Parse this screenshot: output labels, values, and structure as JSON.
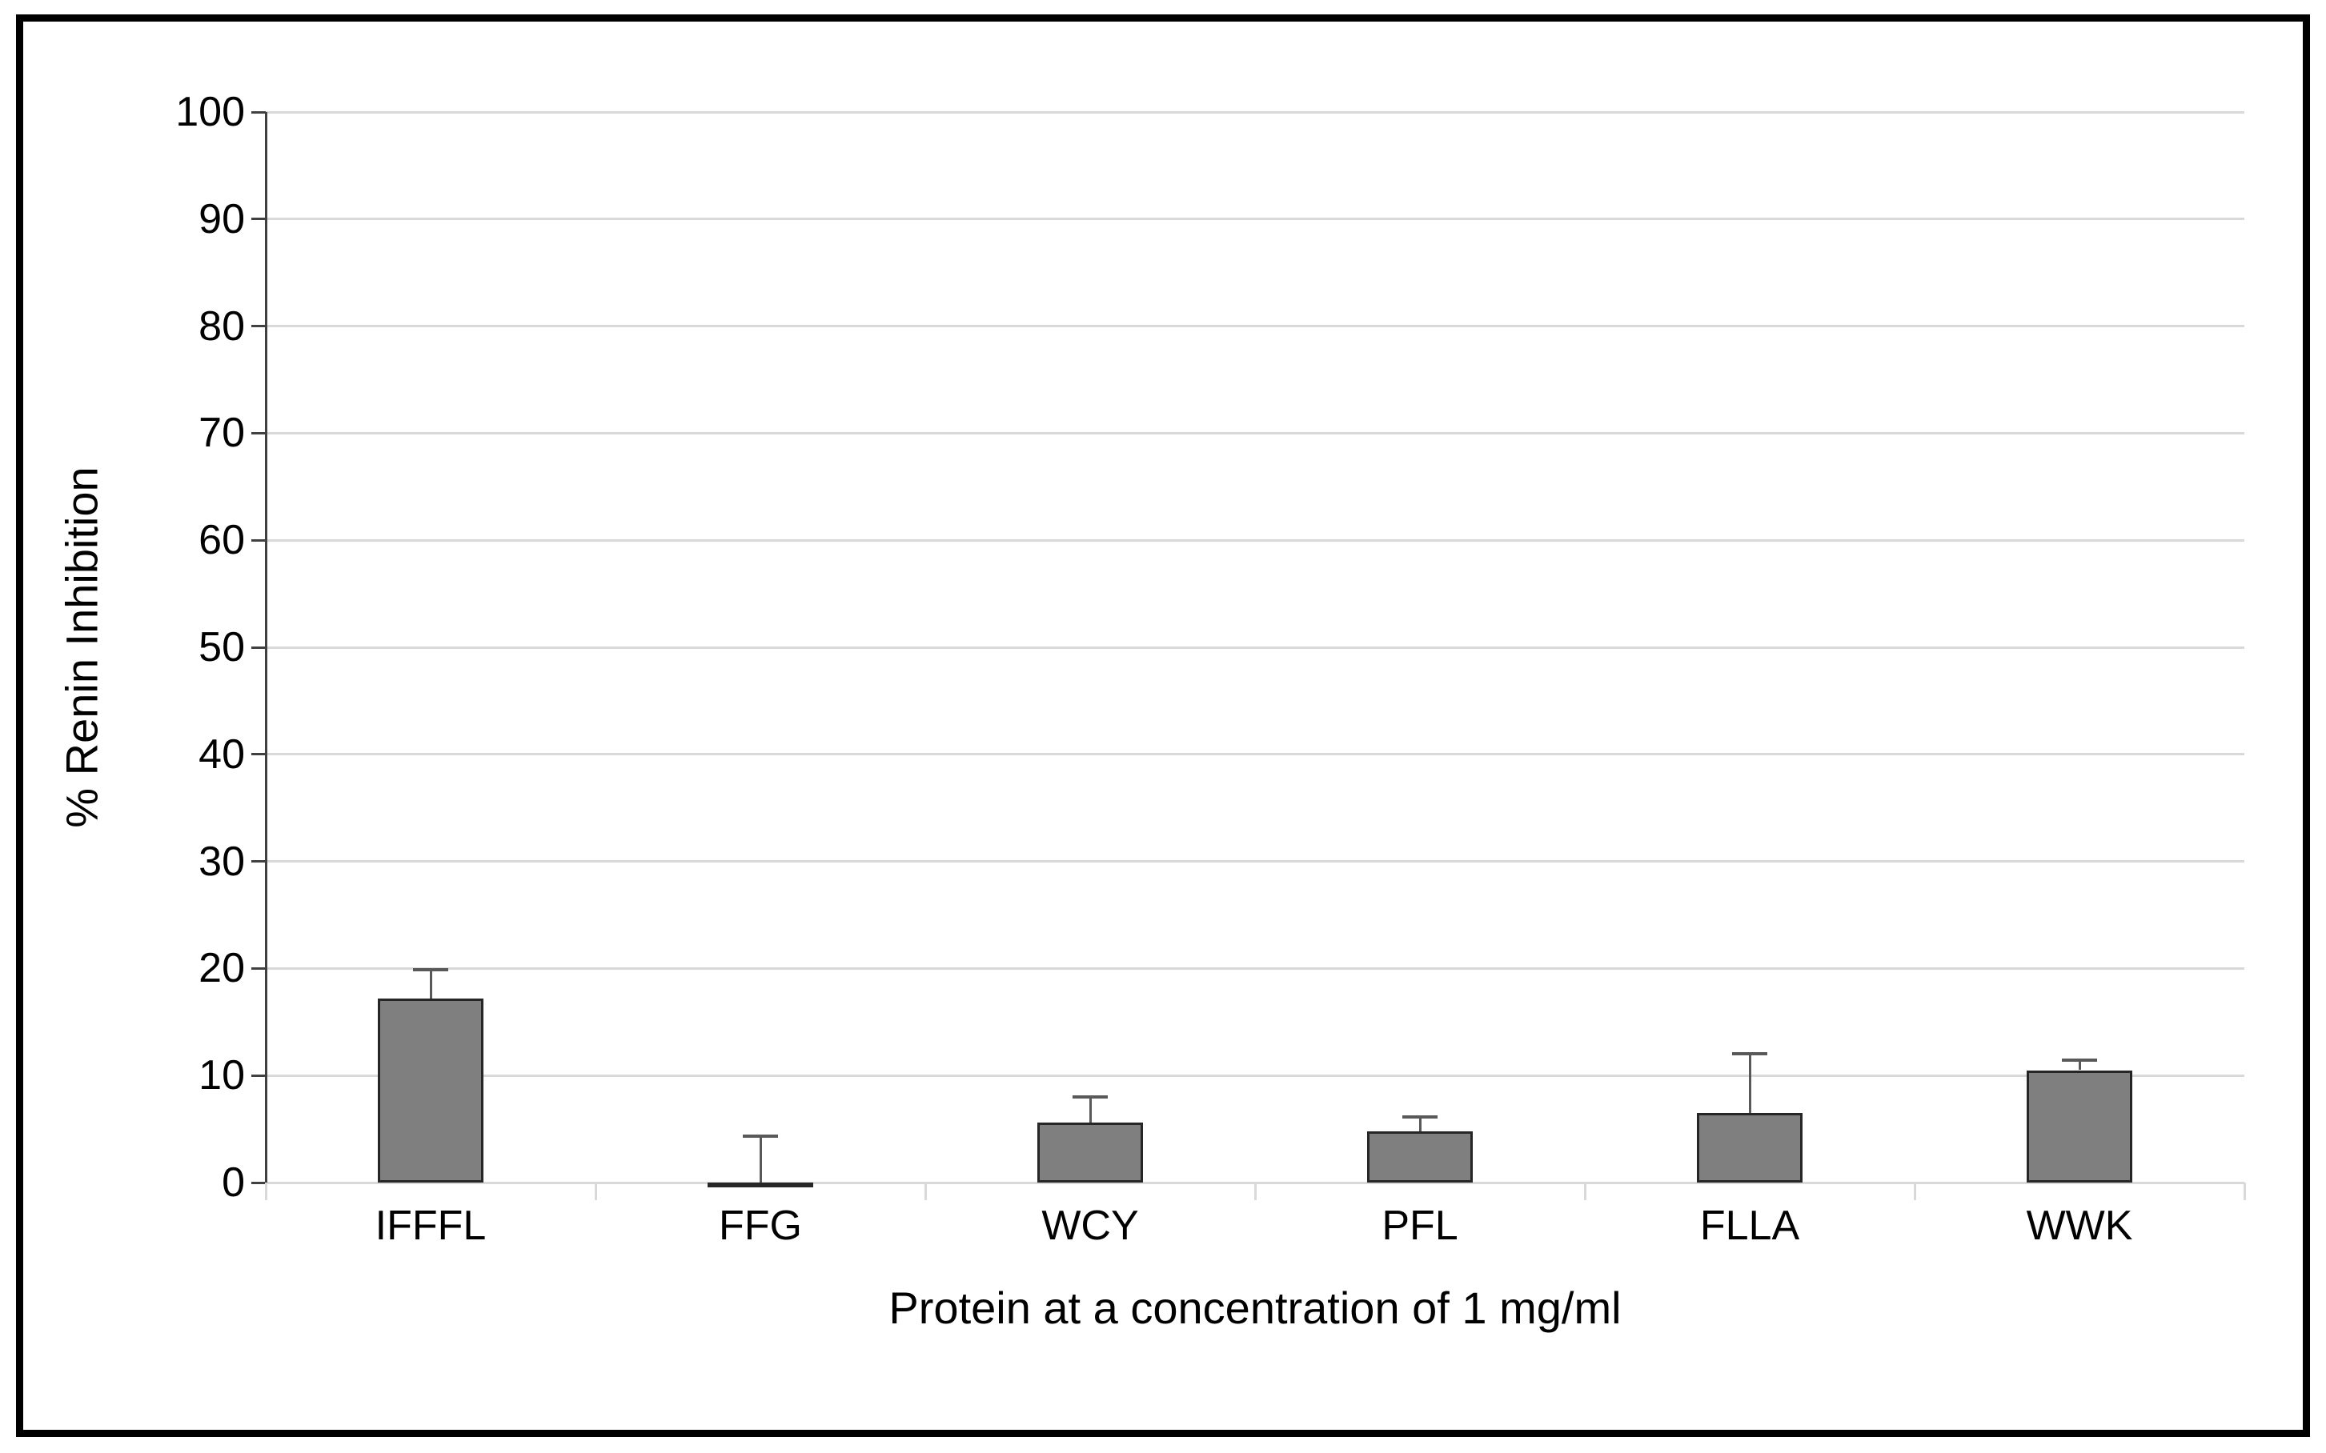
{
  "chart_data": {
    "type": "bar",
    "title": "",
    "xlabel": "Protein at a concentration of 1 mg/ml",
    "ylabel": "% Renin Inhibition",
    "categories": [
      "IFFFL",
      "FFG",
      "WCY",
      "PFL",
      "FLLA",
      "WWK"
    ],
    "values": [
      17.2,
      -0.3,
      5.6,
      4.8,
      6.5,
      10.5
    ],
    "errors_plus": [
      2.7,
      4.6,
      2.4,
      1.3,
      5.5,
      0.9
    ],
    "ylim": [
      0,
      100
    ],
    "yticks": [
      0,
      10,
      20,
      30,
      40,
      50,
      60,
      70,
      80,
      90,
      100
    ],
    "grid": "horizontal",
    "legend": "none",
    "colors": {
      "bar_fill": "#7f7f7f",
      "bar_border": "#262626",
      "error_bar": "#595959",
      "gridline": "#d9d9d9",
      "axis_line": "#404040",
      "text": "#000000",
      "frame_border": "#000000",
      "background": "#ffffff"
    }
  }
}
